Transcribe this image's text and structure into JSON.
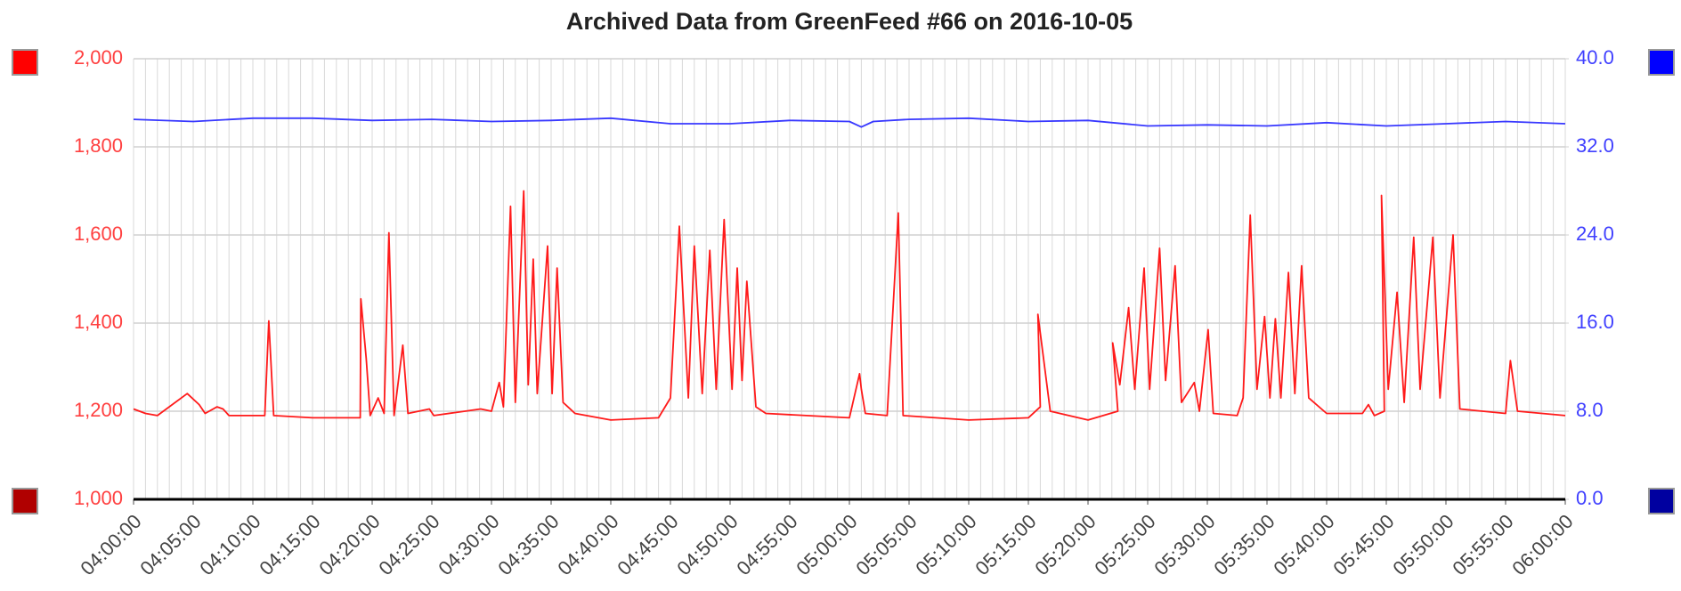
{
  "chart_data": {
    "type": "line",
    "title": "Archived Data from GreenFeed #66 on 2016-10-05",
    "xlim": [
      "04:00:00",
      "06:00:00"
    ],
    "xticks": [
      "04:00:00",
      "04:05:00",
      "04:10:00",
      "04:15:00",
      "04:20:00",
      "04:25:00",
      "04:30:00",
      "04:35:00",
      "04:40:00",
      "04:45:00",
      "04:50:00",
      "04:55:00",
      "05:00:00",
      "05:05:00",
      "05:10:00",
      "05:15:00",
      "05:20:00",
      "05:25:00",
      "05:30:00",
      "05:35:00",
      "05:40:00",
      "05:45:00",
      "05:50:00",
      "05:55:00",
      "06:00:00"
    ],
    "ylim": [
      1000,
      2000
    ],
    "yticks": [
      {
        "value": 1000,
        "label": "1,000"
      },
      {
        "value": 1200,
        "label": "1,200"
      },
      {
        "value": 1400,
        "label": "1,400"
      },
      {
        "value": 1600,
        "label": "1,600"
      },
      {
        "value": 1800,
        "label": "1,800"
      },
      {
        "value": 2000,
        "label": "2,000"
      }
    ],
    "y2lim": [
      0,
      40
    ],
    "y2ticks": [
      {
        "value": 0,
        "label": "0.0"
      },
      {
        "value": 8,
        "label": "8.0"
      },
      {
        "value": 16,
        "label": "16.0"
      },
      {
        "value": 24,
        "label": "24.0"
      },
      {
        "value": 32,
        "label": "32.0"
      },
      {
        "value": 40,
        "label": "40.0"
      }
    ],
    "grid": true,
    "series": [
      {
        "color": "#ff1a1a",
        "x": [
          "04:00:00",
          "04:01:00",
          "04:02:00",
          "04:04:30",
          "04:05:30",
          "04:06:00",
          "04:07:00",
          "04:07:30",
          "04:08:00",
          "04:11:00",
          "04:11:20",
          "04:11:45",
          "04:15:00",
          "04:19:00",
          "04:19:03",
          "04:19:30",
          "04:19:50",
          "04:20:30",
          "04:21:00",
          "04:21:24",
          "04:21:50",
          "04:22:34",
          "04:23:00",
          "04:24:48",
          "04:25:10",
          "04:29:06",
          "04:30:00",
          "04:30:39",
          "04:31:00",
          "04:31:36",
          "04:32:00",
          "04:32:42",
          "04:33:05",
          "04:33:30",
          "04:33:50",
          "04:34:42",
          "04:35:05",
          "04:35:30",
          "04:36:00",
          "04:37:00",
          "04:40:00",
          "04:44:00",
          "04:45:00",
          "04:45:45",
          "04:46:30",
          "04:47:00",
          "04:47:40",
          "04:48:18",
          "04:48:50",
          "04:49:30",
          "04:50:10",
          "04:50:36",
          "04:51:00",
          "04:51:24",
          "04:52:10",
          "04:53:00",
          "05:00:00",
          "05:00:51",
          "05:01:00",
          "05:01:20",
          "05:03:10",
          "05:04:06",
          "05:04:30",
          "05:10:00",
          "05:15:00",
          "05:16:00",
          "05:15:48",
          "05:16:50",
          "05:20:00",
          "05:22:30",
          "05:22:04",
          "05:22:40",
          "05:23:24",
          "05:23:55",
          "05:24:42",
          "05:25:10",
          "05:26:00",
          "05:26:30",
          "05:27:18",
          "05:27:50",
          "05:28:54",
          "05:29:20",
          "05:30:04",
          "05:30:30",
          "05:32:30",
          "05:33:00",
          "05:33:36",
          "05:34:10",
          "05:34:48",
          "05:35:15",
          "05:35:42",
          "05:36:10",
          "05:36:48",
          "05:37:20",
          "05:37:54",
          "05:38:30",
          "05:40:00",
          "05:43:00",
          "05:43:30",
          "05:44:00",
          "05:44:50",
          "05:44:36",
          "05:45:10",
          "05:45:54",
          "05:46:30",
          "05:47:18",
          "05:47:50",
          "05:48:54",
          "05:49:30",
          "05:50:36",
          "05:51:10",
          "05:55:00",
          "05:55:24",
          "05:56:00",
          "06:00:00"
        ],
        "values": [
          1205,
          1195,
          1190,
          1240,
          1215,
          1195,
          1210,
          1205,
          1190,
          1190,
          1405,
          1190,
          1185,
          1185,
          1455,
          1320,
          1190,
          1230,
          1195,
          1605,
          1190,
          1350,
          1195,
          1205,
          1190,
          1205,
          1200,
          1265,
          1210,
          1665,
          1220,
          1700,
          1260,
          1545,
          1240,
          1575,
          1240,
          1525,
          1220,
          1195,
          1180,
          1185,
          1230,
          1620,
          1230,
          1575,
          1240,
          1565,
          1250,
          1635,
          1250,
          1525,
          1270,
          1495,
          1210,
          1195,
          1185,
          1285,
          1250,
          1195,
          1190,
          1650,
          1190,
          1180,
          1185,
          1210,
          1420,
          1200,
          1180,
          1200,
          1355,
          1260,
          1435,
          1250,
          1525,
          1250,
          1570,
          1270,
          1530,
          1220,
          1265,
          1200,
          1385,
          1195,
          1190,
          1230,
          1645,
          1250,
          1415,
          1230,
          1410,
          1230,
          1515,
          1240,
          1530,
          1230,
          1195,
          1195,
          1215,
          1190,
          1200,
          1690,
          1250,
          1470,
          1220,
          1595,
          1250,
          1595,
          1230,
          1600,
          1205,
          1195,
          1315,
          1200,
          1190
        ]
      },
      {
        "color": "#3838ff",
        "axis": "y2",
        "x": [
          "04:00:00",
          "04:05:00",
          "04:10:00",
          "04:15:00",
          "04:20:00",
          "04:25:00",
          "04:30:00",
          "04:35:00",
          "04:40:00",
          "04:45:00",
          "04:50:00",
          "04:55:00",
          "05:00:00",
          "05:01:00",
          "05:02:00",
          "05:05:00",
          "05:10:00",
          "05:15:00",
          "05:20:00",
          "05:25:00",
          "05:30:00",
          "05:35:00",
          "05:40:00",
          "05:45:00",
          "05:50:00",
          "05:55:00",
          "06:00:00"
        ],
        "values": [
          34.5,
          34.3,
          34.6,
          34.6,
          34.4,
          34.5,
          34.3,
          34.4,
          34.6,
          34.1,
          34.1,
          34.4,
          34.3,
          33.8,
          34.3,
          34.5,
          34.6,
          34.3,
          34.4,
          33.9,
          34.0,
          33.9,
          34.2,
          33.9,
          34.1,
          34.3,
          34.1
        ]
      }
    ]
  }
}
